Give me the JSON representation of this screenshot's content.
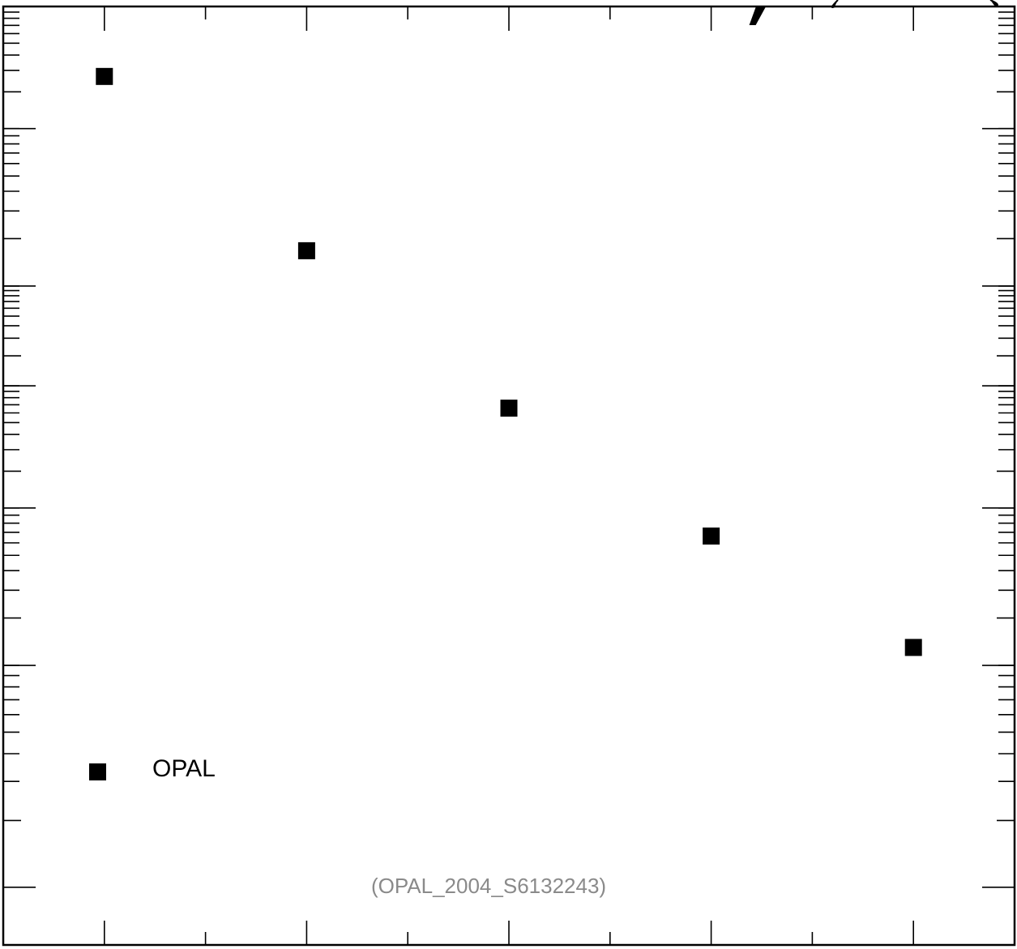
{
  "chart_data": {
    "type": "scatter",
    "x": [
      1,
      2,
      3,
      4,
      5
    ],
    "series": [
      {
        "name": "OPAL",
        "y": [
          0.88,
          0.64,
          0.48,
          0.38,
          0.31
        ],
        "marker": "square",
        "color": "#000000"
      }
    ],
    "xlim": [
      0.5,
      5.5
    ],
    "ylim": [
      0.18,
      1.0
    ],
    "yscale": "log",
    "grid": false,
    "legend_position": "bottom-left",
    "watermark": "(OPAL_2004_S6132243)"
  }
}
